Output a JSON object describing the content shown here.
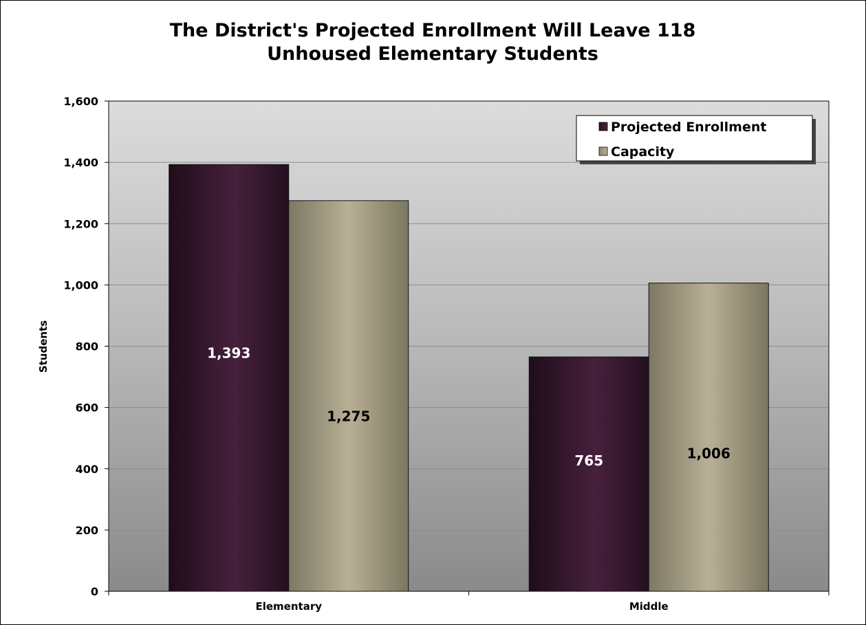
{
  "chart_data": {
    "type": "bar",
    "title": "The District's Projected Enrollment Will Leave 118",
    "subtitle": "Unhoused Elementary Students",
    "xlabel": "",
    "ylabel": "Students",
    "categories": [
      "Elementary",
      "Middle"
    ],
    "series": [
      {
        "name": "Projected Enrollment",
        "values": [
          1393,
          765
        ],
        "labels": [
          "1,393",
          "765"
        ],
        "color": "#3d1a33",
        "label_color": "#ffffff"
      },
      {
        "name": "Capacity",
        "values": [
          1275,
          1006
        ],
        "labels": [
          "1,275",
          "1,006"
        ],
        "color": "#aea68d",
        "label_color": "#000000"
      }
    ],
    "ylim": [
      0,
      1600
    ],
    "yticks": [
      0,
      200,
      400,
      600,
      800,
      1000,
      1200,
      1400,
      1600
    ],
    "ytick_labels": [
      "0",
      "200",
      "400",
      "600",
      "800",
      "1,000",
      "1,200",
      "1,400",
      "1,600"
    ],
    "grid": true,
    "legend_position": "top-right",
    "plot_background": "gradient light-gray to dark-gray"
  }
}
